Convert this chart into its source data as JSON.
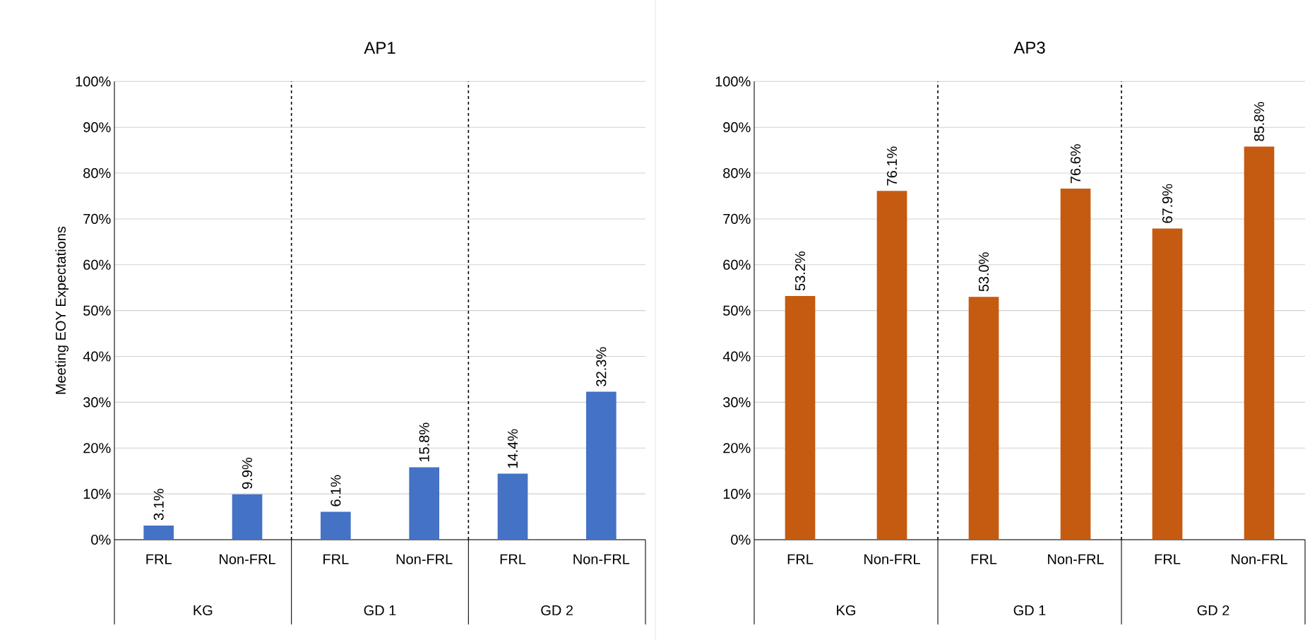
{
  "chart_data": [
    {
      "type": "bar",
      "title": "AP1",
      "ylabel": "Meeting EOY Expectations",
      "categories": [
        "FRL",
        "Non-FRL",
        "FRL",
        "Non-FRL",
        "FRL",
        "Non-FRL"
      ],
      "values": [
        3.1,
        9.9,
        6.1,
        15.8,
        14.4,
        32.3
      ],
      "value_labels": [
        "3.1%",
        "9.9%",
        "6.1%",
        "15.8%",
        "14.4%",
        "32.3%"
      ],
      "color": "#4472c4",
      "annotations": [
        "KG",
        "GD 1",
        "GD 2"
      ],
      "ylim": [
        0,
        100
      ],
      "yticks": [
        {
          "value": 0,
          "label": "0%"
        },
        {
          "value": 10,
          "label": "10%"
        },
        {
          "value": 20,
          "label": "20%"
        },
        {
          "value": 30,
          "label": "30%"
        },
        {
          "value": 40,
          "label": "40%"
        },
        {
          "value": 50,
          "label": "50%"
        },
        {
          "value": 60,
          "label": "60%"
        },
        {
          "value": 70,
          "label": "70%"
        },
        {
          "value": 80,
          "label": "80%"
        },
        {
          "value": 90,
          "label": "90%"
        },
        {
          "value": 100,
          "label": "100%"
        }
      ],
      "grid": "y"
    },
    {
      "type": "bar",
      "title": "AP3",
      "categories": [
        "FRL",
        "Non-FRL",
        "FRL",
        "Non-FRL",
        "FRL",
        "Non-FRL"
      ],
      "values": [
        53.2,
        76.1,
        53.0,
        76.6,
        67.9,
        85.8
      ],
      "value_labels": [
        "53.2%",
        "76.1%",
        "53.0%",
        "76.6%",
        "67.9%",
        "85.8%"
      ],
      "color": "#c55a11",
      "annotations": [
        "KG",
        "GD 1",
        "GD 2"
      ],
      "ylim": [
        0,
        100
      ],
      "yticks": [
        {
          "value": 0,
          "label": "0%"
        },
        {
          "value": 10,
          "label": "10%"
        },
        {
          "value": 20,
          "label": "20%"
        },
        {
          "value": 30,
          "label": "30%"
        },
        {
          "value": 40,
          "label": "40%"
        },
        {
          "value": 50,
          "label": "50%"
        },
        {
          "value": 60,
          "label": "60%"
        },
        {
          "value": 70,
          "label": "70%"
        },
        {
          "value": 80,
          "label": "80%"
        },
        {
          "value": 90,
          "label": "90%"
        },
        {
          "value": 100,
          "label": "100%"
        }
      ],
      "grid": "y"
    }
  ]
}
